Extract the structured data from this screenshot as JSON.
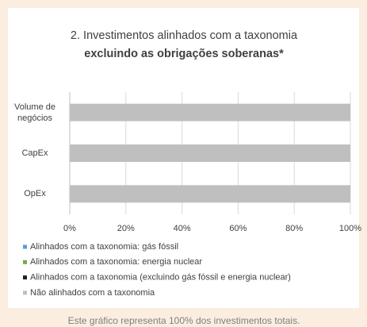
{
  "chart_data": {
    "type": "stacked_barh",
    "title": "2. Investimentos alinhados com a taxonomia",
    "subtitle": "excluindo as obrigações soberanas*",
    "categories": [
      "Volume de negócios",
      "CapEx",
      "OpEx"
    ],
    "series": [
      {
        "name": "Alinhados com a taxonomia: gás fóssil",
        "color": "#5b9bd5",
        "values": [
          0,
          0,
          0
        ]
      },
      {
        "name": "Alinhados com a taxonomia: energia nuclear",
        "color": "#70ad47",
        "values": [
          0,
          0,
          0
        ]
      },
      {
        "name": "Alinhados com a taxonomia (excluindo gás fóssil e energia nuclear)",
        "color": "#222222",
        "values": [
          0,
          0,
          0
        ]
      },
      {
        "name": "Não alinhados com a taxonomia",
        "color": "#bfbfbf",
        "values": [
          100,
          100,
          100
        ]
      }
    ],
    "xlim": [
      0,
      100
    ],
    "xticks": [
      {
        "value": 0,
        "label": "0%"
      },
      {
        "value": 20,
        "label": "20%"
      },
      {
        "value": 40,
        "label": "40%"
      },
      {
        "value": 60,
        "label": "60%"
      },
      {
        "value": 80,
        "label": "80%"
      },
      {
        "value": 100,
        "label": "100%"
      }
    ],
    "grid": true,
    "note": "Este gráfico representa 100% dos investimentos totais."
  }
}
